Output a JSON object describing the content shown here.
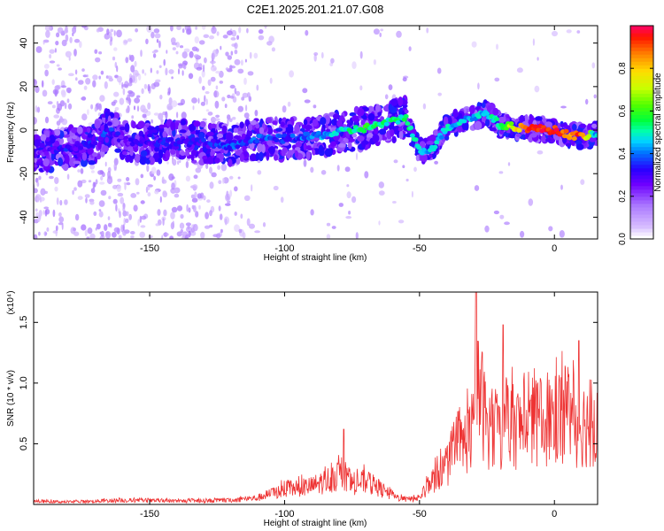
{
  "title": "C2E1.2025.201.21.07.G08",
  "chart_data": [
    {
      "type": "heatmap",
      "xlabel": "Height of straight line (km)",
      "ylabel": "Frequency (Hz)",
      "xlim": [
        -193,
        16
      ],
      "ylim": [
        -50,
        48
      ],
      "x_ticks": [
        -150,
        -100,
        -50,
        0
      ],
      "y_ticks": [
        40,
        20,
        0,
        -20,
        -40
      ],
      "colorbar": {
        "label": "Normalized spectral amplitude",
        "range": [
          0.0,
          1.0
        ],
        "ticks": [
          0.0,
          0.2,
          0.4,
          0.6,
          0.8
        ],
        "colormap": [
          "#ffffff",
          "#cc99ff",
          "#7a00ff",
          "#0000ff",
          "#00c8ff",
          "#00ff9a",
          "#00ff00",
          "#a0ff00",
          "#ffff00",
          "#ff8000",
          "#ff0000",
          "#ff0080"
        ]
      },
      "ridge": {
        "description": "dominant frequency track",
        "x": [
          -190,
          -180,
          -170,
          -165,
          -160,
          -150,
          -140,
          -130,
          -120,
          -110,
          -100,
          -90,
          -80,
          -70,
          -60,
          -55,
          -50,
          -45,
          -40,
          -35,
          -30,
          -25,
          -20,
          -10,
          0,
          5,
          10,
          15
        ],
        "y": [
          -10,
          -8,
          -6,
          2,
          -5,
          -6,
          -5,
          -6,
          -7,
          -4,
          -4,
          -3,
          -1,
          1,
          4,
          6,
          -10,
          -8,
          1,
          4,
          6,
          8,
          2,
          1,
          0,
          -2,
          -3,
          -2
        ],
        "amplitude": [
          0.25,
          0.3,
          0.3,
          0.35,
          0.25,
          0.3,
          0.3,
          0.3,
          0.35,
          0.35,
          0.35,
          0.4,
          0.45,
          0.55,
          0.5,
          0.5,
          0.45,
          0.45,
          0.45,
          0.45,
          0.45,
          0.45,
          0.55,
          0.9,
          0.95,
          0.85,
          0.9,
          0.45
        ]
      }
    },
    {
      "type": "line",
      "xlabel": "Height of straight line (km)",
      "ylabel": "SNR (10 * v/v)",
      "y_scale_label": "(x10⁴)",
      "xlim": [
        -193,
        16
      ],
      "ylim": [
        0,
        1.75
      ],
      "x_ticks": [
        -150,
        -100,
        -50,
        0
      ],
      "y_ticks": [
        0.5,
        1.0,
        1.5
      ],
      "color": "#ee3333",
      "envelope": {
        "x": [
          -193,
          -180,
          -160,
          -140,
          -120,
          -110,
          -100,
          -90,
          -80,
          -75,
          -70,
          -65,
          -60,
          -55,
          -50,
          -45,
          -40,
          -35,
          -30,
          -28,
          -25,
          -20,
          -18,
          -15,
          -10,
          -5,
          0,
          5,
          8,
          10,
          15
        ],
        "y": [
          0.04,
          0.03,
          0.05,
          0.04,
          0.05,
          0.08,
          0.18,
          0.22,
          0.35,
          0.25,
          0.28,
          0.2,
          0.1,
          0.06,
          0.08,
          0.3,
          0.45,
          0.7,
          0.9,
          1.45,
          0.95,
          0.85,
          0.95,
          0.95,
          0.95,
          1.0,
          1.05,
          1.15,
          0.95,
          1.0,
          0.95
        ]
      },
      "peaks": [
        {
          "x": -78,
          "y": 0.62
        },
        {
          "x": -29,
          "y": 1.75
        },
        {
          "x": -25,
          "y": 0.75
        },
        {
          "x": -19,
          "y": 1.48
        },
        {
          "x": 9,
          "y": 1.35
        }
      ]
    }
  ]
}
